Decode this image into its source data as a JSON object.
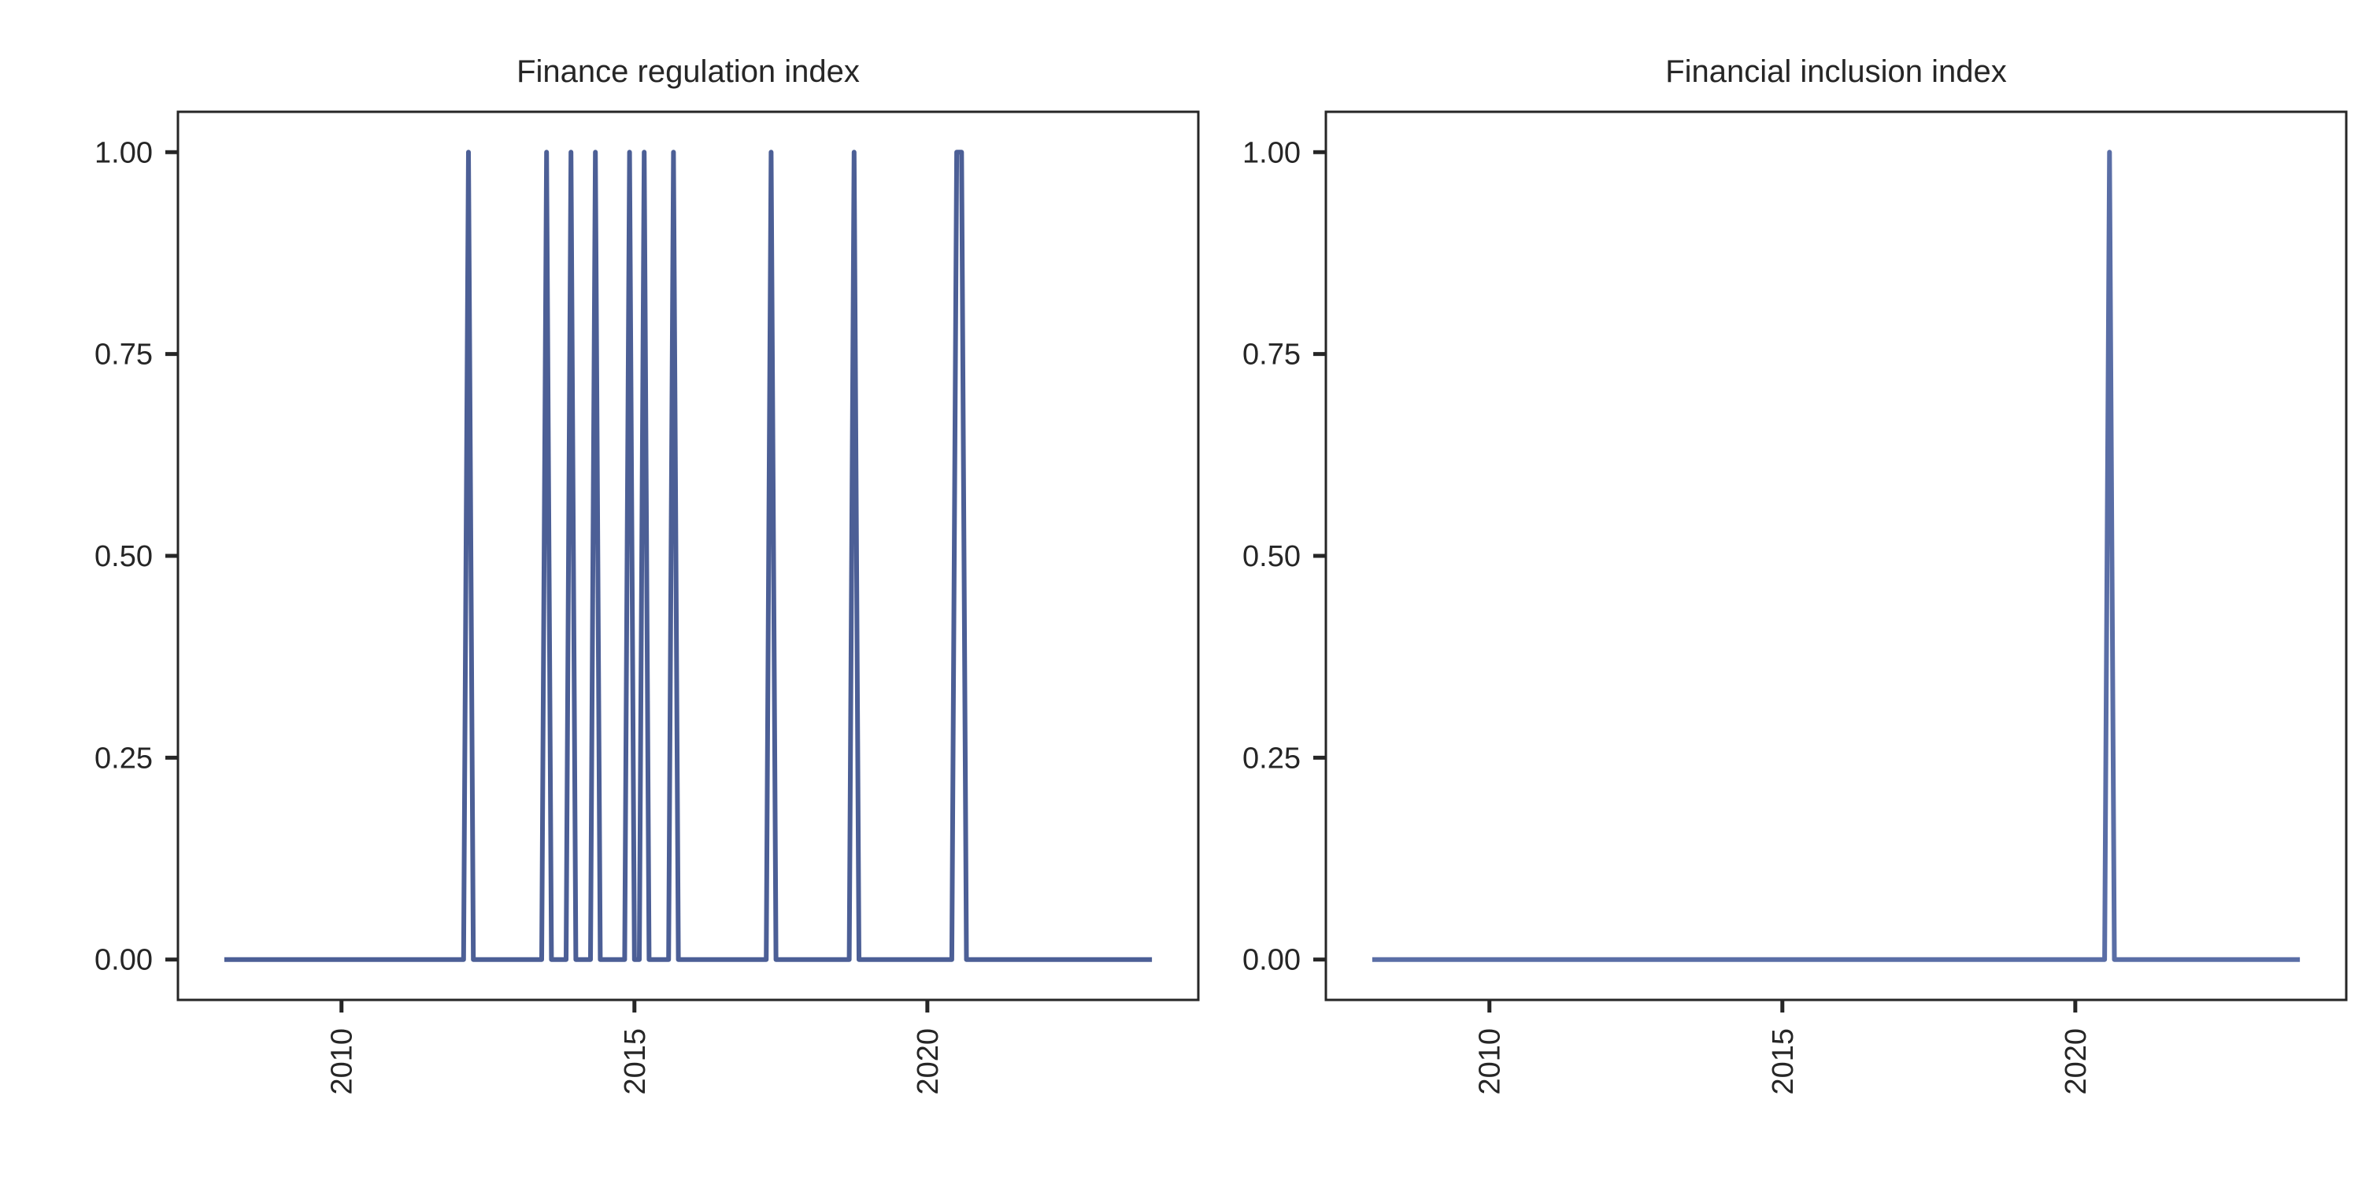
{
  "chart_data": [
    {
      "type": "line",
      "title": "Finance regulation index",
      "xlabel": "",
      "ylabel": "",
      "xlim": [
        "2008-01",
        "2023-11"
      ],
      "ylim": [
        -0.05,
        1.05
      ],
      "x_ticks": [
        "2010",
        "2015",
        "2020"
      ],
      "y_ticks": [
        "0.00",
        "0.25",
        "0.50",
        "0.75",
        "1.00"
      ],
      "y_tick_values": [
        0,
        0.25,
        0.5,
        0.75,
        1
      ],
      "grid": false,
      "series": [
        {
          "color": "#4c5f96",
          "points": [
            [
              "2008-01",
              0
            ],
            [
              "2012-02",
              0
            ],
            [
              "2012-03",
              1
            ],
            [
              "2012-04",
              0
            ],
            [
              "2013-06",
              0
            ],
            [
              "2013-07",
              1
            ],
            [
              "2013-08",
              0
            ],
            [
              "2013-11",
              0
            ],
            [
              "2013-12",
              1
            ],
            [
              "2014-01",
              0
            ],
            [
              "2014-04",
              0
            ],
            [
              "2014-05",
              1
            ],
            [
              "2014-06",
              0
            ],
            [
              "2014-11",
              0
            ],
            [
              "2014-12",
              1
            ],
            [
              "2015-01",
              0
            ],
            [
              "2015-02",
              0
            ],
            [
              "2015-03",
              1
            ],
            [
              "2015-04",
              0
            ],
            [
              "2015-08",
              0
            ],
            [
              "2015-09",
              1
            ],
            [
              "2015-10",
              0
            ],
            [
              "2017-04",
              0
            ],
            [
              "2017-05",
              1
            ],
            [
              "2017-06",
              0
            ],
            [
              "2018-09",
              0
            ],
            [
              "2018-10",
              1
            ],
            [
              "2018-11",
              0
            ],
            [
              "2020-06",
              0
            ],
            [
              "2020-07",
              1
            ],
            [
              "2020-08",
              1
            ],
            [
              "2020-09",
              0
            ],
            [
              "2023-11",
              0
            ]
          ]
        }
      ]
    },
    {
      "type": "line",
      "title": "Financial inclusion index",
      "xlabel": "",
      "ylabel": "",
      "xlim": [
        "2008-01",
        "2023-11"
      ],
      "ylim": [
        -0.05,
        1.05
      ],
      "x_ticks": [
        "2010",
        "2015",
        "2020"
      ],
      "y_ticks": [
        "0.00",
        "0.25",
        "0.50",
        "0.75",
        "1.00"
      ],
      "y_tick_values": [
        0,
        0.25,
        0.5,
        0.75,
        1
      ],
      "grid": false,
      "series": [
        {
          "color": "#5a6ea6",
          "points": [
            [
              "2008-01",
              0
            ],
            [
              "2020-07",
              0
            ],
            [
              "2020-08",
              1
            ],
            [
              "2020-09",
              0
            ],
            [
              "2023-11",
              0
            ]
          ]
        }
      ]
    }
  ]
}
